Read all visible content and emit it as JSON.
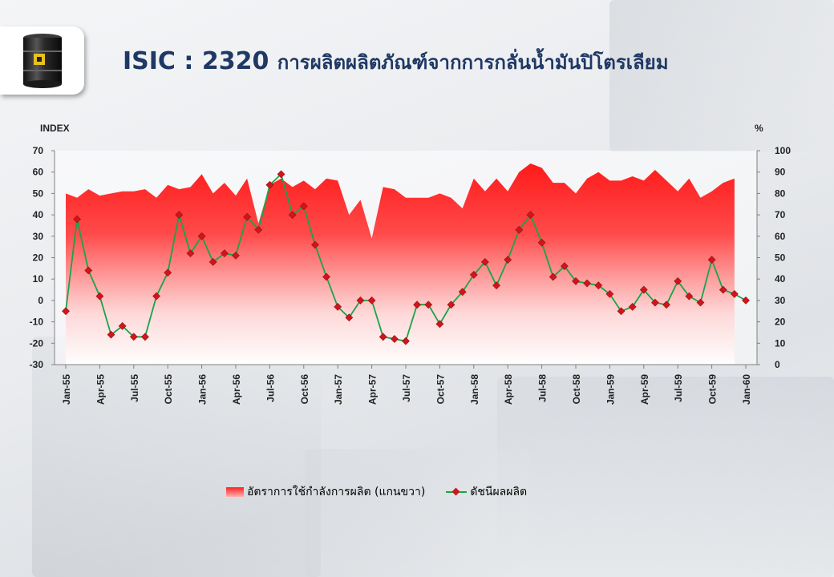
{
  "title_bold": "ISIC : 2320",
  "title_thai": "การผลิตผลิตภัณฑ์จากการกลั่นน้ำมันปิโตรเลียม",
  "chart_data": {
    "type": "line",
    "left_axis_label": "INDEX",
    "right_axis_label": "%",
    "left_ylim": [
      -30,
      70
    ],
    "left_ticks": [
      70,
      60,
      50,
      40,
      30,
      20,
      10,
      0,
      -10,
      -20,
      -30
    ],
    "right_ylim": [
      0,
      100
    ],
    "right_ticks": [
      100,
      90,
      80,
      70,
      60,
      50,
      40,
      30,
      20,
      10,
      0
    ],
    "x_tick_labels": [
      "Jan-55",
      "Apr-55",
      "Jul-55",
      "Oct-55",
      "Jan-56",
      "Apr-56",
      "Jul-56",
      "Oct-56",
      "Jan-57",
      "Apr-57",
      "Jul-57",
      "Oct-57",
      "Jan-58",
      "Apr-58",
      "Jul-58",
      "Oct-58",
      "Jan-59",
      "Apr-59",
      "Jul-59",
      "Oct-59",
      "Jan-60"
    ],
    "legend_position": "bottom",
    "grid": false,
    "colors": {
      "area": "#ff1a1a",
      "line": "#1aa34a",
      "marker": "#d0151c"
    },
    "series": [
      {
        "name": "อัตราการใช้กำลังการผลิต (แกนขวา)",
        "type": "area",
        "axis": "right",
        "values": [
          80,
          78,
          82,
          79,
          80,
          81,
          81,
          82,
          78,
          84,
          82,
          83,
          89,
          80,
          85,
          79,
          87,
          66,
          84,
          87,
          83,
          86,
          82,
          87,
          86,
          70,
          77,
          59,
          83,
          82,
          78,
          78,
          78,
          80,
          78,
          73,
          87,
          81,
          87,
          81,
          90,
          94,
          92,
          85,
          85,
          80,
          87,
          90,
          86,
          86,
          88,
          86,
          91,
          86,
          81,
          87,
          78,
          81,
          85,
          87
        ]
      },
      {
        "name": "ดัชนีผลผลิต",
        "type": "line",
        "axis": "left",
        "values": [
          -5,
          38,
          14,
          2,
          -16,
          -12,
          -17,
          -17,
          2,
          13,
          40,
          22,
          30,
          18,
          22,
          21,
          39,
          33,
          54,
          59,
          40,
          44,
          26,
          11,
          -3,
          -8,
          0,
          0,
          -17,
          -18,
          -19,
          -2,
          -2,
          -11,
          -2,
          4,
          12,
          18,
          7,
          19,
          33,
          40,
          27,
          11,
          16,
          9,
          8,
          7,
          3,
          -5,
          -3,
          5,
          -1,
          -2,
          9,
          2,
          -1,
          19,
          5,
          3,
          0
        ]
      }
    ]
  }
}
